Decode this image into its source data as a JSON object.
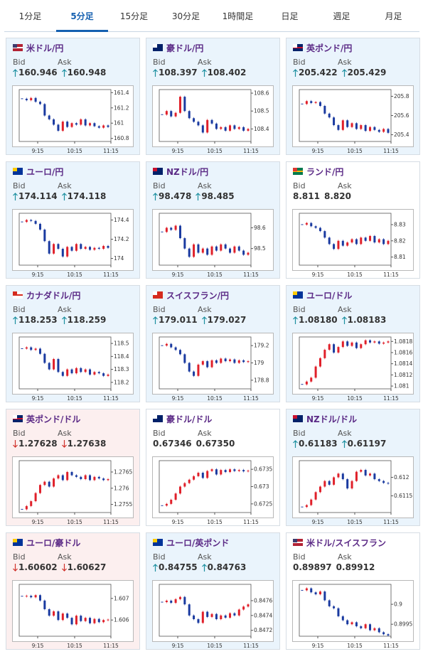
{
  "tabs": {
    "items": [
      "1分足",
      "5分足",
      "15分足",
      "30分足",
      "1時間足",
      "日足",
      "週足",
      "月足"
    ],
    "active": 1
  },
  "bid_label": "Bid",
  "ask_label": "Ask",
  "time_labels": [
    "9:15",
    "10:15",
    "11:15"
  ],
  "cards": [
    {
      "name": "米ドル/円",
      "flag": "us",
      "bid": "160.946",
      "ask": "160.948",
      "arrow": "up",
      "chart": {
        "ylim": [
          160.76,
          161.44
        ],
        "yticks": [
          161.4,
          161.2,
          161,
          160.8
        ],
        "values": [
          161.32,
          161.3,
          161.33,
          161.28,
          161.25,
          161.1,
          161.05,
          160.98,
          160.9,
          161.02,
          160.95,
          161,
          160.98,
          161.05,
          160.97,
          161,
          160.96,
          160.94,
          160.97,
          160.95
        ]
      }
    },
    {
      "name": "豪ドル/円",
      "flag": "au",
      "bid": "108.397",
      "ask": "108.402",
      "arrow": "up",
      "chart": {
        "ylim": [
          108.33,
          108.62
        ],
        "yticks": [
          108.6,
          108.5,
          108.4
        ],
        "values": [
          108.48,
          108.5,
          108.47,
          108.49,
          108.58,
          108.5,
          108.46,
          108.44,
          108.42,
          108.38,
          108.45,
          108.43,
          108.4,
          108.41,
          108.39,
          108.42,
          108.4,
          108.41,
          108.39,
          108.4
        ]
      }
    },
    {
      "name": "英ポンド/円",
      "flag": "gb",
      "bid": "205.422",
      "ask": "205.429",
      "arrow": "up",
      "chart": {
        "ylim": [
          205.33,
          205.87
        ],
        "yticks": [
          205.8,
          205.6,
          205.4
        ],
        "values": [
          205.72,
          205.75,
          205.73,
          205.74,
          205.7,
          205.62,
          205.58,
          205.5,
          205.45,
          205.55,
          205.48,
          205.52,
          205.46,
          205.5,
          205.44,
          205.48,
          205.45,
          205.43,
          205.46,
          205.42
        ]
      }
    },
    {
      "name": "ユーロ/円",
      "flag": "eu",
      "bid": "174.114",
      "ask": "174.118",
      "arrow": "up",
      "chart": {
        "ylim": [
          173.93,
          174.47
        ],
        "yticks": [
          174.4,
          174.2,
          174
        ],
        "values": [
          174.38,
          174.4,
          174.39,
          174.36,
          174.3,
          174.18,
          174.05,
          174.15,
          174.1,
          174.02,
          174.12,
          174.08,
          174.15,
          174.1,
          174.12,
          174.09,
          174.11,
          174.1,
          174.13,
          174.11
        ]
      }
    },
    {
      "name": "NZドル/円",
      "flag": "nz",
      "bid": "98.478",
      "ask": "98.485",
      "arrow": "up",
      "chart": {
        "ylim": [
          98.42,
          98.67
        ],
        "yticks": [
          98.6,
          98.5
        ],
        "values": [
          98.58,
          98.6,
          98.59,
          98.61,
          98.55,
          98.5,
          98.46,
          98.52,
          98.48,
          98.5,
          98.47,
          98.51,
          98.49,
          98.52,
          98.5,
          98.48,
          98.51,
          98.49,
          98.47,
          98.48
        ]
      }
    },
    {
      "name": "ランド/円",
      "flag": "za",
      "bid": "8.811",
      "ask": "8.820",
      "arrow": null,
      "chart": {
        "ylim": [
          8.805,
          8.837
        ],
        "yticks": [
          8.83,
          8.82,
          8.81
        ],
        "values": [
          8.83,
          8.831,
          8.829,
          8.828,
          8.826,
          8.822,
          8.818,
          8.815,
          8.82,
          8.817,
          8.819,
          8.821,
          8.818,
          8.822,
          8.82,
          8.823,
          8.819,
          8.821,
          8.818,
          8.82
        ]
      }
    },
    {
      "name": "カナダドル/円",
      "flag": "ca",
      "bid": "118.253",
      "ask": "118.259",
      "arrow": "up",
      "chart": {
        "ylim": [
          118.15,
          118.55
        ],
        "yticks": [
          118.5,
          118.4,
          118.3,
          118.2
        ],
        "values": [
          118.46,
          118.47,
          118.45,
          118.46,
          118.42,
          118.35,
          118.3,
          118.38,
          118.28,
          118.25,
          118.3,
          118.27,
          118.31,
          118.28,
          118.3,
          118.26,
          118.28,
          118.27,
          118.25,
          118.26
        ]
      }
    },
    {
      "name": "スイスフラン/円",
      "flag": "ch",
      "bid": "179.011",
      "ask": "179.027",
      "arrow": "up",
      "chart": {
        "ylim": [
          178.7,
          179.3
        ],
        "yticks": [
          179.2,
          179,
          178.8
        ],
        "values": [
          179.2,
          179.22,
          179.18,
          179.15,
          179.1,
          179,
          178.9,
          178.85,
          178.98,
          179.02,
          178.95,
          179.03,
          179,
          179.05,
          179.02,
          179.04,
          179,
          179.03,
          179.01,
          179.02
        ]
      }
    },
    {
      "name": "ユーロ/ドル",
      "flag": "eu",
      "bid": "1.08180",
      "ask": "1.08183",
      "arrow": "up",
      "chart": {
        "ylim": [
          1.08095,
          1.08188
        ],
        "yticks": [
          1.0818,
          1.0816,
          1.0814,
          1.0812,
          1.081
        ],
        "values": [
          1.08103,
          1.08108,
          1.08115,
          1.08135,
          1.0815,
          1.08165,
          1.08175,
          1.0816,
          1.0817,
          1.0818,
          1.08172,
          1.08178,
          1.08168,
          1.08175,
          1.08182,
          1.08178,
          1.0818,
          1.08176,
          1.08178,
          1.0818
        ]
      }
    },
    {
      "name": "英ポンド/ドル",
      "flag": "gb",
      "bid": "1.27628",
      "ask": "1.27638",
      "arrow": "down",
      "chart": {
        "ylim": [
          1.27525,
          1.27685
        ],
        "yticks": [
          1.2765,
          1.276,
          1.2755
        ],
        "values": [
          1.27535,
          1.27545,
          1.2756,
          1.27585,
          1.2761,
          1.2762,
          1.27605,
          1.2763,
          1.2764,
          1.27625,
          1.2765,
          1.2764,
          1.27635,
          1.27628,
          1.2764,
          1.27625,
          1.27635,
          1.2763,
          1.27625,
          1.27628
        ]
      }
    },
    {
      "name": "豪ドル/ドル",
      "flag": "au",
      "bid": "0.67346",
      "ask": "0.67350",
      "arrow": null,
      "chart": {
        "ylim": [
          0.67225,
          0.67375
        ],
        "yticks": [
          0.6735,
          0.673,
          0.6725
        ],
        "values": [
          0.67245,
          0.6725,
          0.67262,
          0.6728,
          0.673,
          0.6731,
          0.6732,
          0.6733,
          0.6734,
          0.67325,
          0.67345,
          0.6735,
          0.67335,
          0.67348,
          0.67342,
          0.6735,
          0.67345,
          0.67348,
          0.67344,
          0.67346
        ]
      }
    },
    {
      "name": "NZドル/ドル",
      "flag": "nz",
      "bid": "0.61183",
      "ask": "0.61197",
      "arrow": "up",
      "chart": {
        "ylim": [
          0.61105,
          0.61245
        ],
        "yticks": [
          0.612,
          0.6115
        ],
        "values": [
          0.6112,
          0.61125,
          0.6114,
          0.6116,
          0.61175,
          0.6119,
          0.6118,
          0.612,
          0.6121,
          0.61195,
          0.6117,
          0.6119,
          0.61215,
          0.6122,
          0.61205,
          0.6121,
          0.61195,
          0.6119,
          0.61185,
          0.61183
        ]
      }
    },
    {
      "name": "ユーロ/豪ドル",
      "flag": "eu",
      "bid": "1.60602",
      "ask": "1.60627",
      "arrow": "down",
      "chart": {
        "ylim": [
          1.60525,
          1.60765
        ],
        "yticks": [
          1.607,
          1.606
        ],
        "values": [
          1.6071,
          1.60712,
          1.60705,
          1.60715,
          1.6069,
          1.6065,
          1.6062,
          1.6064,
          1.606,
          1.6063,
          1.6061,
          1.6058,
          1.6062,
          1.60595,
          1.6061,
          1.60585,
          1.60605,
          1.6059,
          1.606,
          1.60602
        ]
      }
    },
    {
      "name": "ユーロ/英ポンド",
      "flag": "eu",
      "bid": "0.84755",
      "ask": "0.84763",
      "arrow": "up",
      "chart": {
        "ylim": [
          0.84712,
          0.84782
        ],
        "yticks": [
          0.8476,
          0.8474,
          0.8472
        ],
        "values": [
          0.84758,
          0.8476,
          0.84757,
          0.84762,
          0.84765,
          0.84755,
          0.8474,
          0.84735,
          0.8473,
          0.84745,
          0.84738,
          0.84742,
          0.84735,
          0.8474,
          0.84737,
          0.84743,
          0.8474,
          0.84748,
          0.84752,
          0.84755
        ]
      }
    },
    {
      "name": "米ドル/スイスフラン",
      "flag": "us",
      "bid": "0.89897",
      "ask": "0.89912",
      "arrow": null,
      "chart": {
        "ylim": [
          0.8992,
          0.9005
        ],
        "yticks": [
          0.9,
          0.8995
        ],
        "values": [
          0.90035,
          0.9004,
          0.9003,
          0.90025,
          0.90032,
          0.9001,
          0.89995,
          0.8999,
          0.8997,
          0.8996,
          0.8995,
          0.89955,
          0.89945,
          0.8994,
          0.8995,
          0.89935,
          0.8994,
          0.8993,
          0.89925,
          0.89922
        ]
      }
    }
  ]
}
